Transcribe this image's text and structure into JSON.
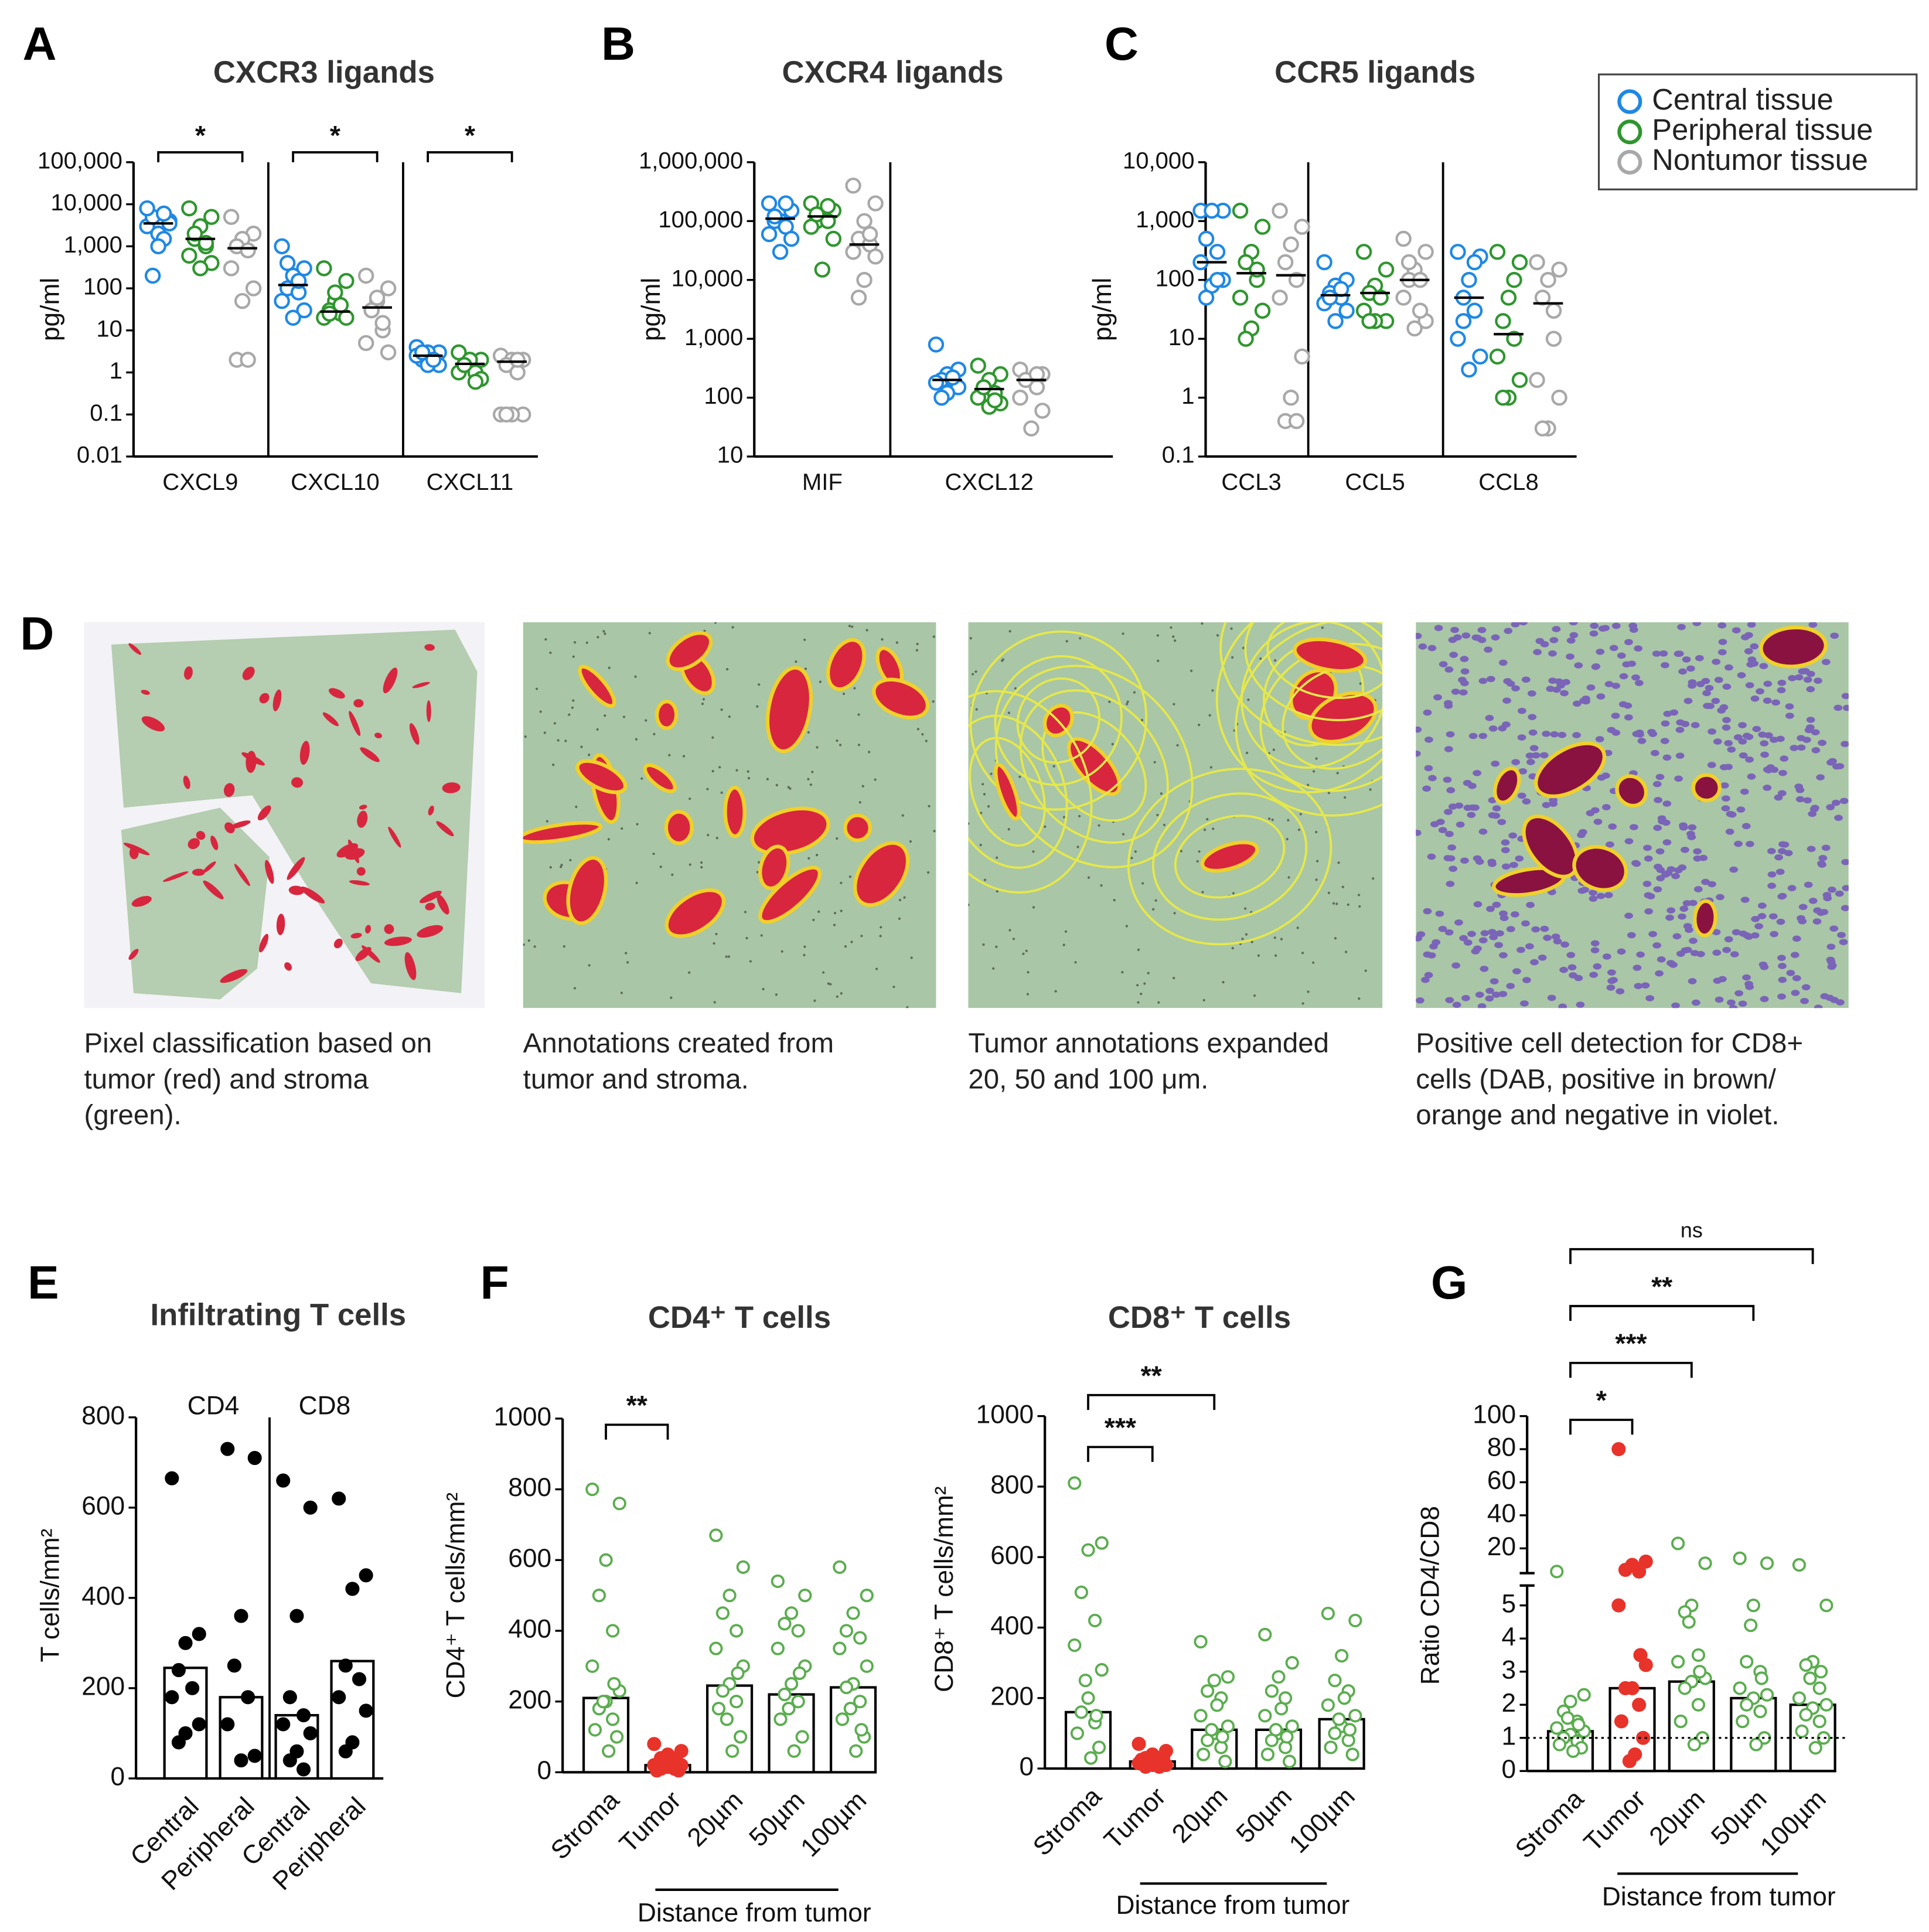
{
  "legend": {
    "entries": [
      {
        "name": "Central tissue",
        "color": "#1e88e5"
      },
      {
        "name": "Peripheral tissue",
        "color": "#2e962e"
      },
      {
        "name": "Nontumor tissue",
        "color": "#a8a8a8"
      }
    ]
  },
  "chart_data": [
    {
      "panel": "A",
      "type": "dot",
      "title": "CXCR3 ligands",
      "y_label": "pg/ml",
      "log_scale": true,
      "ylim": [
        0.01,
        100000
      ],
      "yticks": [
        0.01,
        0.1,
        1,
        10,
        100,
        {
          "value": 1000,
          "label": "1,000"
        },
        {
          "value": 10000,
          "label": "10,000"
        },
        {
          "value": 100000,
          "label": "100,000"
        }
      ],
      "categories": [
        "CXCL9",
        "CXCL10",
        "CXCL11"
      ],
      "series": [
        {
          "values": [
            [
              3000,
              4000,
              2000,
              5000,
              1500,
              8000,
              3500,
              1000,
              200,
              6000
            ],
            [
              1000,
              300,
              200,
              100,
              80,
              50,
              30,
              20,
              400,
              150
            ],
            [
              4,
              3,
              3,
              2,
              2,
              2.5,
              1.5,
              1.5,
              3,
              2
            ]
          ],
          "medians": [
            3500,
            120,
            2.5
          ]
        },
        {
          "values": [
            [
              8000,
              5000,
              3000,
              1500,
              1000,
              600,
              400,
              300,
              2000,
              1200
            ],
            [
              300,
              150,
              50,
              30,
              25,
              20,
              20,
              80,
              25,
              40
            ],
            [
              3,
              2,
              2,
              1.5,
              1,
              1,
              0.7,
              2,
              1.5,
              0.6
            ]
          ],
          "medians": [
            1500,
            28,
            1.6
          ]
        },
        {
          "values": [
            [
              5000,
              2000,
              1500,
              1000,
              800,
              300,
              100,
              50,
              2,
              2
            ],
            [
              200,
              100,
              50,
              30,
              10,
              5,
              3,
              60,
              30,
              15
            ],
            [
              2.5,
              2,
              2,
              1.5,
              1,
              0.1,
              0.1,
              0.1,
              0.1,
              2
            ]
          ],
          "medians": [
            900,
            35,
            1.8
          ]
        }
      ],
      "significance": [
        "*",
        "*",
        "*"
      ]
    },
    {
      "panel": "B",
      "type": "dot",
      "title": "CXCR4 ligands",
      "y_label": "pg/ml",
      "log_scale": true,
      "ylim": [
        10,
        1000000
      ],
      "yticks": [
        10,
        100,
        {
          "value": 1000,
          "label": "1,000"
        },
        {
          "value": 10000,
          "label": "10,000"
        },
        {
          "value": 100000,
          "label": "100,000"
        },
        {
          "value": 1000000,
          "label": "1,000,000"
        }
      ],
      "categories": [
        "MIF",
        "CXCL12"
      ],
      "series": [
        {
          "values": [
            [
              200000,
              150000,
              100000,
              100000,
              80000,
              60000,
              50000,
              30000,
              120000,
              200000
            ],
            [
              800,
              300,
              250,
              200,
              200,
              180,
              150,
              120,
              100,
              220
            ]
          ],
          "medians": [
            110000,
            200
          ]
        },
        {
          "values": [
            [
              200000,
              150000,
              120000,
              100000,
              100000,
              80000,
              50000,
              15000,
              130000,
              180000
            ],
            [
              350,
              250,
              200,
              150,
              120,
              100,
              80,
              70,
              150,
              90
            ]
          ],
          "medians": [
            120000,
            140
          ]
        },
        {
          "values": [
            [
              400000,
              200000,
              100000,
              50000,
              40000,
              30000,
              25000,
              10000,
              5000,
              60000
            ],
            [
              300,
              250,
              200,
              200,
              150,
              100,
              60,
              30,
              200,
              250
            ]
          ],
          "medians": [
            40000,
            200
          ]
        }
      ]
    },
    {
      "panel": "C",
      "type": "dot",
      "title": "CCR5 ligands",
      "y_label": "pg/ml",
      "log_scale": true,
      "ylim": [
        0.1,
        10000
      ],
      "yticks": [
        0.1,
        1,
        10,
        100,
        {
          "value": 1000,
          "label": "1,000"
        },
        {
          "value": 10000,
          "label": "10,000"
        }
      ],
      "categories": [
        "CCL3",
        "CCL5",
        "CCL8"
      ],
      "series": [
        {
          "values": [
            [
              1500,
              1500,
              1500,
              500,
              300,
              200,
              100,
              80,
              50,
              100
            ],
            [
              200,
              100,
              80,
              60,
              50,
              40,
              30,
              20,
              50,
              70
            ],
            [
              300,
              250,
              100,
              50,
              30,
              10,
              5,
              3,
              20,
              200
            ]
          ],
          "medians": [
            200,
            55,
            50
          ]
        },
        {
          "values": [
            [
              1500,
              800,
              300,
              200,
              100,
              50,
              30,
              15,
              10,
              150
            ],
            [
              300,
              150,
              80,
              60,
              50,
              30,
              20,
              20,
              20,
              50
            ],
            [
              300,
              200,
              50,
              20,
              10,
              5,
              2,
              1,
              1,
              100
            ]
          ],
          "medians": [
            130,
            60,
            12
          ]
        },
        {
          "values": [
            [
              1500,
              800,
              400,
              200,
              100,
              50,
              5,
              1,
              0.4,
              0.4
            ],
            [
              500,
              300,
              150,
              100,
              100,
              50,
              20,
              15,
              200,
              30
            ],
            [
              200,
              150,
              100,
              50,
              10,
              2,
              1,
              0.3,
              0.3,
              30
            ]
          ],
          "medians": [
            120,
            100,
            40
          ]
        }
      ]
    },
    {
      "panel": "E",
      "type": "bar_dot",
      "title": "Infiltrating T cells",
      "y_label": "T cells/mm²",
      "ylim": [
        0,
        800
      ],
      "yticks": [
        0,
        200,
        400,
        600,
        800
      ],
      "categories": [
        "Central",
        "Peripheral",
        "Central",
        "Peripheral"
      ],
      "groups": [
        "CD4",
        "CD8"
      ],
      "values": [
        245,
        180,
        140,
        260
      ],
      "points": [
        [
          665,
          320,
          300,
          240,
          200,
          180,
          120,
          100,
          80
        ],
        [
          730,
          710,
          360,
          250,
          180,
          120,
          50,
          40
        ],
        [
          660,
          600,
          360,
          180,
          140,
          120,
          100,
          60,
          40,
          20
        ],
        [
          620,
          450,
          420,
          250,
          220,
          180,
          150,
          80,
          60
        ]
      ],
      "point_colors": [
        "#000000",
        "#000000",
        "#000000",
        "#000000"
      ],
      "filled_points": [
        true,
        true,
        true,
        true
      ]
    },
    {
      "panel": "F",
      "type": "bar_dot",
      "title": "CD4⁺ T cells",
      "y_label": "CD4⁺ T cells/mm²",
      "ylim": [
        0,
        1000
      ],
      "yticks": [
        0,
        200,
        400,
        600,
        800,
        1000
      ],
      "categories": [
        "Stroma",
        "Tumor",
        "20µm",
        "50µm",
        "100µm"
      ],
      "x_label": "Distance from tumor",
      "values": [
        210,
        20,
        245,
        220,
        240
      ],
      "points": [
        [
          800,
          760,
          600,
          500,
          400,
          300,
          230,
          200,
          180,
          150,
          120,
          100,
          60,
          200,
          250
        ],
        [
          80,
          60,
          50,
          40,
          30,
          20,
          20,
          15,
          10,
          10,
          5,
          5,
          30,
          25,
          40
        ],
        [
          670,
          580,
          500,
          450,
          400,
          350,
          300,
          250,
          230,
          200,
          180,
          100,
          60,
          150,
          280
        ],
        [
          540,
          500,
          450,
          420,
          400,
          350,
          300,
          250,
          220,
          200,
          150,
          100,
          60,
          180,
          280
        ],
        [
          580,
          500,
          450,
          400,
          380,
          350,
          300,
          250,
          240,
          200,
          150,
          100,
          60,
          180,
          120
        ]
      ],
      "point_colors": [
        "#5aad4e",
        "#e8332a",
        "#5aad4e",
        "#5aad4e",
        "#5aad4e"
      ],
      "filled_points": [
        false,
        true,
        false,
        false,
        false
      ],
      "significance": [
        null,
        "**",
        null,
        null,
        null
      ]
    },
    {
      "type": "bar_dot",
      "title": "CD8⁺ T cells",
      "y_label": "CD8⁺ T cells/mm²",
      "ylim": [
        0,
        1000
      ],
      "yticks": [
        0,
        200,
        400,
        600,
        800,
        1000
      ],
      "categories": [
        "Stroma",
        "Tumor",
        "20µm",
        "50µm",
        "100µm"
      ],
      "x_label": "Distance from tumor",
      "values": [
        160,
        20,
        110,
        110,
        140
      ],
      "points": [
        [
          810,
          640,
          620,
          500,
          420,
          350,
          280,
          200,
          160,
          130,
          100,
          60,
          30,
          250,
          150
        ],
        [
          70,
          50,
          40,
          30,
          20,
          15,
          10,
          10,
          5,
          5,
          25,
          35,
          20,
          15,
          8
        ],
        [
          360,
          260,
          250,
          220,
          200,
          150,
          120,
          100,
          80,
          60,
          40,
          20,
          180,
          110,
          90
        ],
        [
          380,
          300,
          260,
          220,
          200,
          150,
          120,
          100,
          80,
          60,
          40,
          20,
          170,
          110,
          90
        ],
        [
          440,
          420,
          320,
          250,
          220,
          180,
          150,
          120,
          100,
          80,
          60,
          40,
          200,
          140,
          110
        ]
      ],
      "point_colors": [
        "#5aad4e",
        "#e8332a",
        "#5aad4e",
        "#5aad4e",
        "#5aad4e"
      ],
      "filled_points": [
        false,
        true,
        false,
        false,
        false
      ],
      "significance": [
        null,
        "***",
        "**",
        null,
        null
      ]
    },
    {
      "panel": "G",
      "type": "bar_dot",
      "y_label": "Ratio CD4/CD8",
      "ylim": [
        0,
        5.6
      ],
      "yticks": [
        0,
        1,
        2,
        3,
        4,
        5
      ],
      "ylim_upper": [
        5,
        100
      ],
      "yticks_upper": [
        20,
        40,
        60,
        80,
        100
      ],
      "reference_line": 1,
      "categories": [
        "Stroma",
        "Tumor",
        "20µm",
        "50µm",
        "100µm"
      ],
      "x_label": "Distance from tumor",
      "values": [
        1.2,
        2.5,
        2.7,
        2.2,
        2.0
      ],
      "points": [
        [
          6,
          2.3,
          2.1,
          1.8,
          1.5,
          1.3,
          1.2,
          1.1,
          1.0,
          0.9,
          0.8,
          0.7,
          0.6,
          1.6,
          1.4
        ],
        [
          80,
          12,
          10,
          7,
          6,
          5,
          3.2,
          2.5,
          2.5,
          2.0,
          1.5,
          1.0,
          0.5,
          0.3,
          3.5
        ],
        [
          23,
          11,
          5,
          4.8,
          3.5,
          3.3,
          2.8,
          2.7,
          2.5,
          2.0,
          1.5,
          1.0,
          0.8,
          4.5,
          3.0
        ],
        [
          14,
          11,
          5,
          3.3,
          3.0,
          2.5,
          2.3,
          2.2,
          2.0,
          1.8,
          1.5,
          1.0,
          0.8,
          4.4,
          2.8
        ],
        [
          10,
          5,
          3.3,
          3.2,
          2.5,
          2.2,
          2.0,
          1.9,
          1.7,
          1.5,
          1.2,
          1.0,
          0.7,
          2.8,
          3.0
        ]
      ],
      "point_colors": [
        "#5aad4e",
        "#e8332a",
        "#5aad4e",
        "#5aad4e",
        "#5aad4e"
      ],
      "filled_points": [
        false,
        true,
        false,
        false,
        false
      ],
      "significance": [
        null,
        "*",
        "***",
        "**",
        "ns"
      ]
    }
  ],
  "figure_d": {
    "panel": "D",
    "images": [
      {
        "caption": [
          "Pixel classification based on",
          "tumor (red) and stroma",
          "(green)."
        ]
      },
      {
        "caption": [
          "Annotations created from",
          "tumor and stroma."
        ]
      },
      {
        "caption": [
          "Tumor annotations expanded",
          "20, 50 and 100 μm."
        ]
      },
      {
        "caption": [
          "Positive cell detection for CD8+",
          "cells (DAB, positive in brown/",
          "orange and negative in violet."
        ]
      }
    ]
  }
}
